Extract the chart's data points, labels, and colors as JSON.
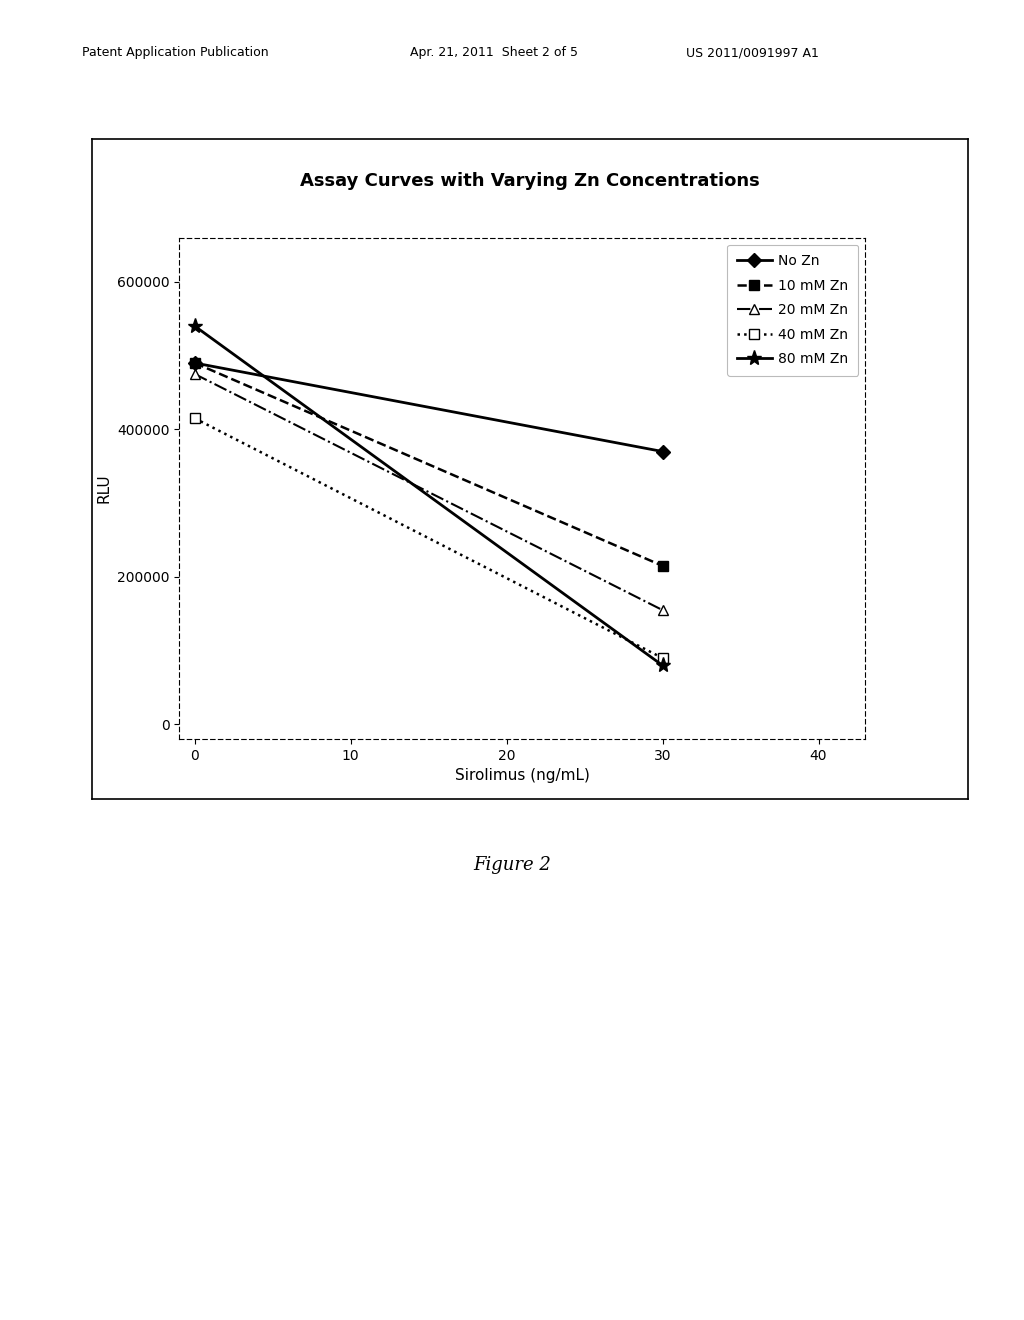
{
  "title": "Assay Curves with Varying Zn Concentrations",
  "xlabel": "Sirolimus (ng/mL)",
  "ylabel": "RLU",
  "figure_caption": "Figure 2",
  "xlim": [
    -1,
    43
  ],
  "ylim": [
    -20000,
    660000
  ],
  "xticks": [
    0,
    10,
    20,
    30,
    40
  ],
  "yticks": [
    0,
    200000,
    400000,
    600000
  ],
  "series": [
    {
      "label": "No Zn",
      "x": [
        0,
        30
      ],
      "y": [
        490000,
        370000
      ],
      "linestyle": "-",
      "marker": "D",
      "markersize": 7,
      "linewidth": 2.0,
      "color": "black",
      "markerfacecolor": "black",
      "dashes": []
    },
    {
      "label": "10 mM Zn",
      "x": [
        0,
        30
      ],
      "y": [
        490000,
        215000
      ],
      "linestyle": "--",
      "marker": "s",
      "markersize": 7,
      "linewidth": 1.8,
      "color": "black",
      "markerfacecolor": "black",
      "dashes": [
        8,
        4
      ]
    },
    {
      "label": "20 mM Zn",
      "x": [
        0,
        30
      ],
      "y": [
        475000,
        155000
      ],
      "linestyle": "-.",
      "marker": "^",
      "markersize": 7,
      "linewidth": 1.5,
      "color": "black",
      "markerfacecolor": "white",
      "dashes": [
        6,
        2,
        1,
        2
      ]
    },
    {
      "label": "40 mM Zn",
      "x": [
        0,
        30
      ],
      "y": [
        415000,
        90000
      ],
      "linestyle": ":",
      "marker": "s",
      "markersize": 7,
      "linewidth": 1.8,
      "color": "black",
      "markerfacecolor": "white",
      "dashes": [
        1,
        3
      ]
    },
    {
      "label": "80 mM Zn",
      "x": [
        0,
        30
      ],
      "y": [
        540000,
        80000
      ],
      "linestyle": "-",
      "marker": "*",
      "markersize": 11,
      "linewidth": 2.0,
      "color": "black",
      "markerfacecolor": "black",
      "dashes": []
    }
  ],
  "header_left": "Patent Application Publication",
  "header_mid": "Apr. 21, 2011  Sheet 2 of 5",
  "header_right": "US 2011/0091997 A1",
  "background_color": "white",
  "title_fontsize": 13,
  "axis_label_fontsize": 11,
  "tick_fontsize": 10,
  "legend_fontsize": 10,
  "caption_fontsize": 13,
  "figure_width": 10.24,
  "figure_height": 13.2
}
